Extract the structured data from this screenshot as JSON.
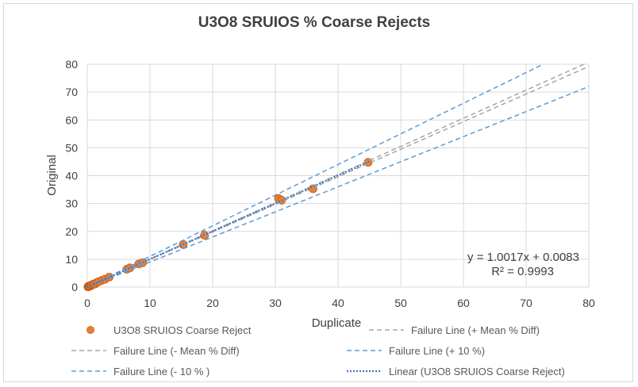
{
  "chart_data": {
    "type": "scatter",
    "title": "U3O8 SRUIOS % Coarse Rejects",
    "xlabel": "Duplicate",
    "ylabel": "Original",
    "xlim": [
      0,
      80
    ],
    "ylim": [
      0,
      80
    ],
    "xticks": [
      "0",
      "10",
      "20",
      "30",
      "40",
      "50",
      "60",
      "70",
      "80"
    ],
    "yticks": [
      "0",
      "10",
      "20",
      "30",
      "40",
      "50",
      "60",
      "70",
      "80"
    ],
    "grid": "major gridlines on both axes",
    "legend_position": "bottom",
    "series": [
      {
        "name": "U3O8 SRUIOS Coarse Reject",
        "kind": "markers",
        "color": "#ed7d31",
        "points": [
          [
            0.1,
            0.1
          ],
          [
            0.2,
            0.3
          ],
          [
            0.3,
            0.2
          ],
          [
            0.4,
            0.5
          ],
          [
            0.5,
            0.4
          ],
          [
            0.6,
            0.6
          ],
          [
            0.7,
            0.8
          ],
          [
            0.9,
            0.9
          ],
          [
            1.0,
            1.1
          ],
          [
            1.2,
            1.1
          ],
          [
            1.5,
            1.6
          ],
          [
            1.8,
            1.9
          ],
          [
            2.3,
            2.4
          ],
          [
            2.8,
            2.8
          ],
          [
            3.5,
            3.6
          ],
          [
            6.3,
            6.4
          ],
          [
            6.8,
            6.9
          ],
          [
            8.2,
            8.3
          ],
          [
            8.8,
            8.7
          ],
          [
            15.3,
            15.3
          ],
          [
            18.7,
            18.6
          ],
          [
            30.5,
            31.8
          ],
          [
            31.0,
            31.2
          ],
          [
            36.0,
            35.3
          ],
          [
            44.8,
            44.8
          ]
        ]
      },
      {
        "name": "Failure Line (+ Mean % Diff)",
        "kind": "line",
        "color": "#a5a5a5",
        "dash": "6,4",
        "slope": 1.01,
        "x_range": [
          0,
          80
        ]
      },
      {
        "name": "Failure Line (- Mean % Diff)",
        "kind": "line",
        "color": "#a5a5a5",
        "dash": "6,4",
        "slope": 0.99,
        "x_range": [
          0,
          80
        ]
      },
      {
        "name": "Failure Line (+ 10 %)",
        "kind": "line",
        "color": "#5b9bd5",
        "dash": "6,4",
        "slope": 1.1,
        "x_range": [
          0,
          80
        ]
      },
      {
        "name": "Failure Line (- 10 % )",
        "kind": "line",
        "color": "#5b9bd5",
        "dash": "6,4",
        "slope": 0.9,
        "x_range": [
          0,
          80
        ]
      },
      {
        "name": "Linear (U3O8 SRUIOS Coarse Reject)",
        "kind": "trendline",
        "color": "#4472c4",
        "dash": "2,2",
        "slope": 1.0017,
        "intercept": 0.0083,
        "x_range": [
          0,
          45
        ]
      }
    ],
    "annotations": [
      "y = 1.0017x + 0.0083",
      "R² = 0.9993"
    ]
  }
}
